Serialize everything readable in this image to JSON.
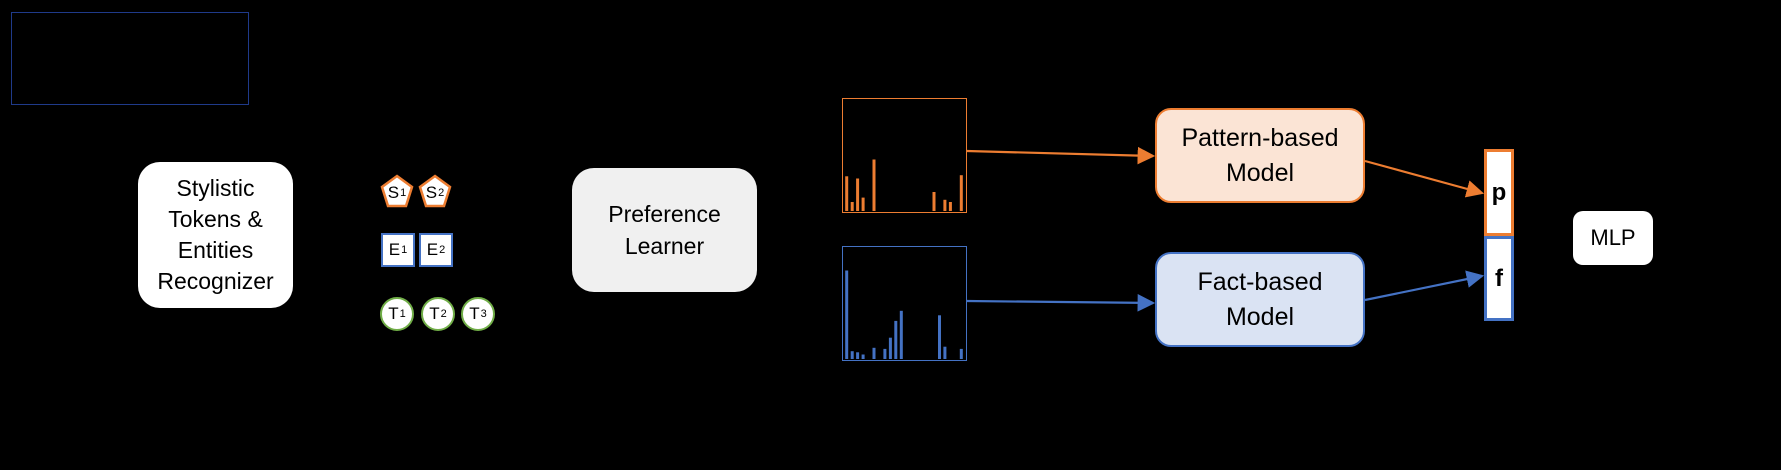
{
  "colors": {
    "background": "#000000",
    "pattern": "#ed7d31",
    "pattern_fill": "#fbe4d5",
    "fact": "#4472c4",
    "fact_fill": "#dae3f3",
    "token_t": "#70ad47",
    "legend_border": "#1f3a8a",
    "learner_fill": "#f0f0f0"
  },
  "legend": {
    "text": ""
  },
  "recognizer": {
    "label": "Stylistic\nTokens &\nEntities\nRecognizer"
  },
  "tokens": {
    "s": [
      {
        "letter": "S",
        "index": "1"
      },
      {
        "letter": "S",
        "index": "2"
      }
    ],
    "e": [
      {
        "letter": "E",
        "index": "1"
      },
      {
        "letter": "E",
        "index": "2"
      }
    ],
    "t": [
      {
        "letter": "T",
        "index": "1"
      },
      {
        "letter": "T",
        "index": "2"
      },
      {
        "letter": "T",
        "index": "3"
      }
    ]
  },
  "learner": {
    "label": "Preference\nLearner"
  },
  "histograms": {
    "pattern": [
      0.31,
      0.08,
      0.29,
      0.12,
      0.0,
      0.46,
      0.0,
      0.0,
      0.0,
      0.0,
      0.0,
      0.0,
      0.0,
      0.0,
      0.0,
      0.0,
      0.17,
      0.0,
      0.1,
      0.08,
      0.0,
      0.32
    ],
    "fact": [
      0.79,
      0.07,
      0.06,
      0.04,
      0.0,
      0.1,
      0.0,
      0.09,
      0.19,
      0.34,
      0.43,
      0.0,
      0.0,
      0.0,
      0.0,
      0.0,
      0.0,
      0.39,
      0.11,
      0.0,
      0.0,
      0.09
    ]
  },
  "models": {
    "pattern": {
      "label": "Pattern-based\nModel"
    },
    "fact": {
      "label": "Fact-based\nModel"
    }
  },
  "vectors": {
    "p": "p",
    "f": "f"
  },
  "mlp": {
    "label": "MLP"
  }
}
